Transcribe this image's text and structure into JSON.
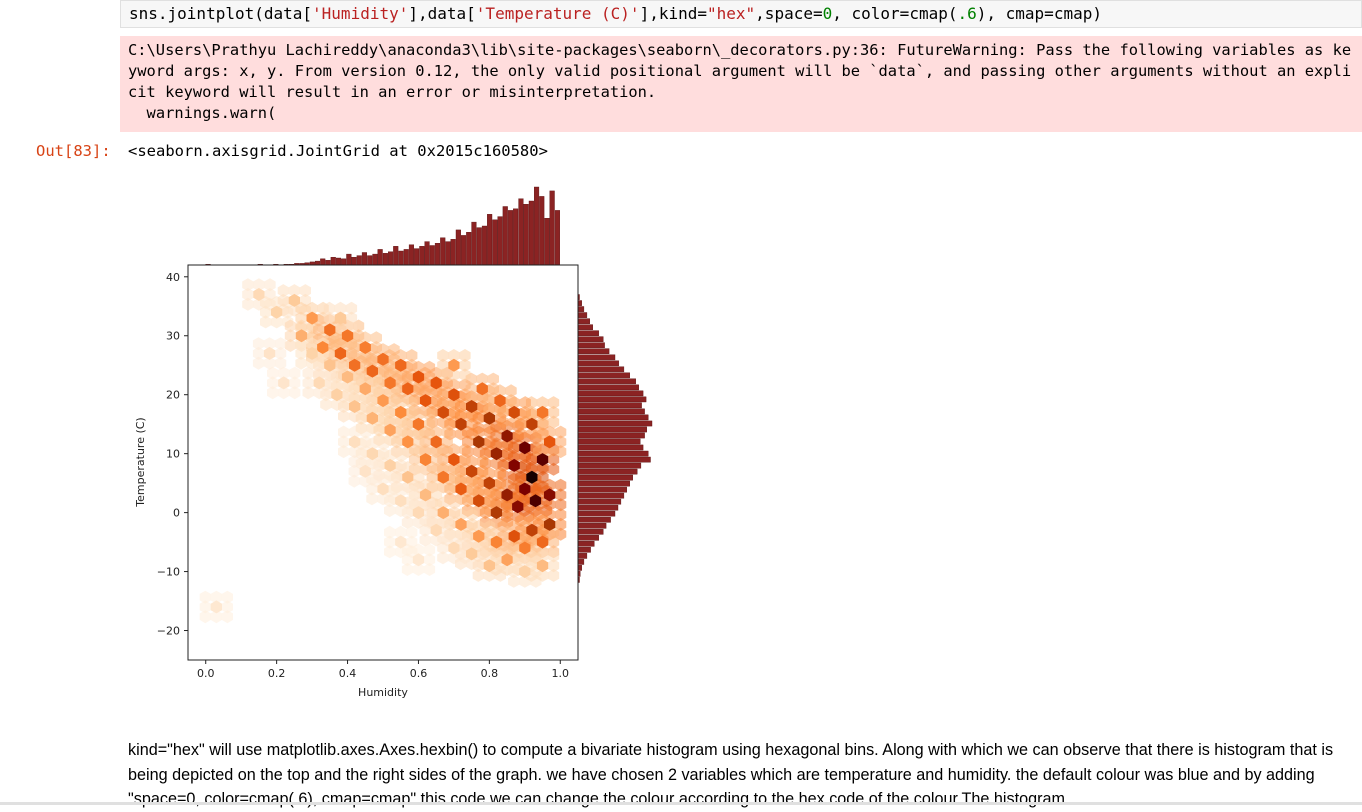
{
  "code_cell": {
    "segments": [
      {
        "t": "sns.jointplot(data[",
        "c": ""
      },
      {
        "t": "'Humidity'",
        "c": "str"
      },
      {
        "t": "],data[",
        "c": ""
      },
      {
        "t": "'Temperature (C)'",
        "c": "str"
      },
      {
        "t": "],kind=",
        "c": ""
      },
      {
        "t": "\"hex\"",
        "c": "str"
      },
      {
        "t": ",space=",
        "c": ""
      },
      {
        "t": "0",
        "c": "num"
      },
      {
        "t": ", color=cmap(",
        "c": ""
      },
      {
        "t": ".6",
        "c": "num"
      },
      {
        "t": "), cmap=cmap)",
        "c": ""
      }
    ]
  },
  "stderr": {
    "text": "C:\\Users\\Prathyu Lachireddy\\anaconda3\\lib\\site-packages\\seaborn\\_decorators.py:36: FutureWarning: Pass the following variables as keyword args: x, y. From version 0.12, the only valid positional argument will be `data`, and passing other arguments without an explicit keyword will result in an error or misinterpretation.\n  warnings.warn("
  },
  "output": {
    "prompt": "Out[83]:",
    "repr": "<seaborn.axisgrid.JointGrid at 0x2015c160580>"
  },
  "chart_data": {
    "type": "hexbin",
    "xlabel": "Humidity",
    "ylabel": "Temperature (C)",
    "xlim": [
      -0.05,
      1.05
    ],
    "ylim": [
      -25,
      42
    ],
    "xticks": [
      "0.0",
      "0.2",
      "0.4",
      "0.6",
      "0.8",
      "1.0"
    ],
    "yticks": [
      "−20",
      "−10",
      "0",
      "10",
      "20",
      "30",
      "40"
    ],
    "colormap": [
      "#fff5eb",
      "#fdd0a2",
      "#fd8d3c",
      "#e6550d",
      "#a63603",
      "#7f0000",
      "#000000"
    ],
    "marginal_color": "#8b2323",
    "hex_bins": [
      {
        "x": 0.15,
        "y": 37,
        "d": 0.12
      },
      {
        "x": 0.2,
        "y": 34,
        "d": 0.15
      },
      {
        "x": 0.25,
        "y": 36,
        "d": 0.18
      },
      {
        "x": 0.27,
        "y": 30,
        "d": 0.25
      },
      {
        "x": 0.3,
        "y": 33,
        "d": 0.3
      },
      {
        "x": 0.33,
        "y": 28,
        "d": 0.35
      },
      {
        "x": 0.35,
        "y": 31,
        "d": 0.42
      },
      {
        "x": 0.38,
        "y": 27,
        "d": 0.45
      },
      {
        "x": 0.4,
        "y": 30,
        "d": 0.4
      },
      {
        "x": 0.42,
        "y": 25,
        "d": 0.42
      },
      {
        "x": 0.45,
        "y": 28,
        "d": 0.38
      },
      {
        "x": 0.47,
        "y": 24,
        "d": 0.45
      },
      {
        "x": 0.5,
        "y": 26,
        "d": 0.42
      },
      {
        "x": 0.52,
        "y": 22,
        "d": 0.4
      },
      {
        "x": 0.55,
        "y": 25,
        "d": 0.44
      },
      {
        "x": 0.57,
        "y": 21,
        "d": 0.46
      },
      {
        "x": 0.6,
        "y": 23,
        "d": 0.5
      },
      {
        "x": 0.62,
        "y": 19,
        "d": 0.5
      },
      {
        "x": 0.65,
        "y": 22,
        "d": 0.5
      },
      {
        "x": 0.67,
        "y": 17,
        "d": 0.55
      },
      {
        "x": 0.7,
        "y": 20,
        "d": 0.52
      },
      {
        "x": 0.72,
        "y": 15,
        "d": 0.6
      },
      {
        "x": 0.75,
        "y": 18,
        "d": 0.6
      },
      {
        "x": 0.77,
        "y": 12,
        "d": 0.66
      },
      {
        "x": 0.8,
        "y": 16,
        "d": 0.65
      },
      {
        "x": 0.82,
        "y": 10,
        "d": 0.72
      },
      {
        "x": 0.85,
        "y": 13,
        "d": 0.76
      },
      {
        "x": 0.87,
        "y": 8,
        "d": 0.82
      },
      {
        "x": 0.9,
        "y": 11,
        "d": 0.86
      },
      {
        "x": 0.92,
        "y": 6,
        "d": 0.97
      },
      {
        "x": 0.95,
        "y": 9,
        "d": 0.88
      },
      {
        "x": 0.93,
        "y": 2,
        "d": 0.9
      },
      {
        "x": 0.9,
        "y": 4,
        "d": 0.84
      },
      {
        "x": 0.88,
        "y": 1,
        "d": 0.8
      },
      {
        "x": 0.85,
        "y": 3,
        "d": 0.74
      },
      {
        "x": 0.82,
        "y": 0,
        "d": 0.64
      },
      {
        "x": 0.8,
        "y": 5,
        "d": 0.6
      },
      {
        "x": 0.77,
        "y": 2,
        "d": 0.55
      },
      {
        "x": 0.75,
        "y": 7,
        "d": 0.58
      },
      {
        "x": 0.72,
        "y": 4,
        "d": 0.48
      },
      {
        "x": 0.7,
        "y": 9,
        "d": 0.5
      },
      {
        "x": 0.67,
        "y": 6,
        "d": 0.4
      },
      {
        "x": 0.65,
        "y": 12,
        "d": 0.44
      },
      {
        "x": 0.62,
        "y": 9,
        "d": 0.36
      },
      {
        "x": 0.6,
        "y": 15,
        "d": 0.4
      },
      {
        "x": 0.57,
        "y": 12,
        "d": 0.32
      },
      {
        "x": 0.55,
        "y": 17,
        "d": 0.34
      },
      {
        "x": 0.52,
        "y": 14,
        "d": 0.28
      },
      {
        "x": 0.5,
        "y": 19,
        "d": 0.3
      },
      {
        "x": 0.47,
        "y": 16,
        "d": 0.24
      },
      {
        "x": 0.45,
        "y": 21,
        "d": 0.26
      },
      {
        "x": 0.42,
        "y": 18,
        "d": 0.2
      },
      {
        "x": 0.4,
        "y": 23,
        "d": 0.22
      },
      {
        "x": 0.37,
        "y": 20,
        "d": 0.16
      },
      {
        "x": 0.35,
        "y": 25,
        "d": 0.2
      },
      {
        "x": 0.32,
        "y": 22,
        "d": 0.12
      },
      {
        "x": 0.3,
        "y": 27,
        "d": 0.15
      },
      {
        "x": 0.97,
        "y": 3,
        "d": 0.8
      },
      {
        "x": 0.97,
        "y": -2,
        "d": 0.66
      },
      {
        "x": 0.95,
        "y": -5,
        "d": 0.44
      },
      {
        "x": 0.92,
        "y": -3,
        "d": 0.6
      },
      {
        "x": 0.9,
        "y": -6,
        "d": 0.38
      },
      {
        "x": 0.87,
        "y": -4,
        "d": 0.52
      },
      {
        "x": 0.85,
        "y": -8,
        "d": 0.28
      },
      {
        "x": 0.82,
        "y": -5,
        "d": 0.36
      },
      {
        "x": 0.8,
        "y": -9,
        "d": 0.2
      },
      {
        "x": 0.77,
        "y": -4,
        "d": 0.3
      },
      {
        "x": 0.75,
        "y": -7,
        "d": 0.18
      },
      {
        "x": 0.72,
        "y": -2,
        "d": 0.28
      },
      {
        "x": 0.7,
        "y": -6,
        "d": 0.12
      },
      {
        "x": 0.67,
        "y": 0,
        "d": 0.25
      },
      {
        "x": 0.65,
        "y": -3,
        "d": 0.12
      },
      {
        "x": 0.62,
        "y": 3,
        "d": 0.22
      },
      {
        "x": 0.6,
        "y": 0,
        "d": 0.12
      },
      {
        "x": 0.57,
        "y": 6,
        "d": 0.2
      },
      {
        "x": 0.55,
        "y": 2,
        "d": 0.1
      },
      {
        "x": 0.52,
        "y": 8,
        "d": 0.16
      },
      {
        "x": 0.5,
        "y": 4,
        "d": 0.1
      },
      {
        "x": 0.47,
        "y": 10,
        "d": 0.13
      },
      {
        "x": 0.45,
        "y": 7,
        "d": 0.08
      },
      {
        "x": 0.42,
        "y": 12,
        "d": 0.1
      },
      {
        "x": 0.92,
        "y": 15,
        "d": 0.6
      },
      {
        "x": 0.95,
        "y": 17,
        "d": 0.4
      },
      {
        "x": 0.87,
        "y": 17,
        "d": 0.55
      },
      {
        "x": 0.83,
        "y": 19,
        "d": 0.45
      },
      {
        "x": 0.9,
        "y": -10,
        "d": 0.16
      },
      {
        "x": 0.95,
        "y": -9,
        "d": 0.22
      },
      {
        "x": 0.97,
        "y": 12,
        "d": 0.5
      },
      {
        "x": 0.78,
        "y": 21,
        "d": 0.42
      },
      {
        "x": 0.7,
        "y": 25,
        "d": 0.3
      },
      {
        "x": 0.03,
        "y": -16,
        "d": 0.06
      },
      {
        "x": 0.18,
        "y": 27,
        "d": 0.08
      },
      {
        "x": 0.22,
        "y": 22,
        "d": 0.07
      },
      {
        "x": 0.38,
        "y": 33,
        "d": 0.18
      },
      {
        "x": 0.6,
        "y": -8,
        "d": 0.06
      },
      {
        "x": 0.55,
        "y": -5,
        "d": 0.06
      }
    ],
    "x_marginal_hist": [
      0.01,
      0.0,
      0.0,
      0.0,
      0.0,
      0.0,
      0.0,
      0.0,
      0.0,
      0.0,
      0.01,
      0.0,
      0.0,
      0.01,
      0.0,
      0.01,
      0.01,
      0.02,
      0.02,
      0.03,
      0.04,
      0.05,
      0.08,
      0.06,
      0.1,
      0.09,
      0.08,
      0.14,
      0.1,
      0.12,
      0.16,
      0.12,
      0.14,
      0.2,
      0.15,
      0.17,
      0.24,
      0.18,
      0.2,
      0.26,
      0.21,
      0.24,
      0.3,
      0.25,
      0.28,
      0.35,
      0.3,
      0.33,
      0.45,
      0.38,
      0.42,
      0.55,
      0.48,
      0.5,
      0.65,
      0.58,
      0.62,
      0.75,
      0.7,
      0.72,
      0.85,
      0.78,
      0.82,
      1.0,
      0.88,
      0.6,
      0.95,
      0.7
    ],
    "y_marginal_hist": [
      0.02,
      0.05,
      0.08,
      0.12,
      0.16,
      0.2,
      0.28,
      0.34,
      0.36,
      0.42,
      0.5,
      0.55,
      0.62,
      0.7,
      0.78,
      0.82,
      0.88,
      0.92,
      0.86,
      0.9,
      0.95,
      1.0,
      0.93,
      0.9,
      0.84,
      0.88,
      0.95,
      0.98,
      0.85,
      0.8,
      0.74,
      0.7,
      0.66,
      0.62,
      0.58,
      0.54,
      0.5,
      0.44,
      0.38,
      0.34,
      0.28,
      0.22,
      0.17,
      0.12,
      0.08,
      0.05,
      0.03,
      0.02
    ]
  },
  "markdown": {
    "text": "kind=\"hex\" will use matplotlib.axes.Axes.hexbin() to compute a bivariate histogram using hexagonal bins. Along with which we can observe that there is histogram that is being depicted on the top and the right sides of the graph. we have chosen 2 variables which are temperature and humidity. the default colour was blue and by adding \"space=0, color=cmap(.6), cmap=cmap\" this code we can change the colour according to the hex code of the colour.The histogram"
  }
}
